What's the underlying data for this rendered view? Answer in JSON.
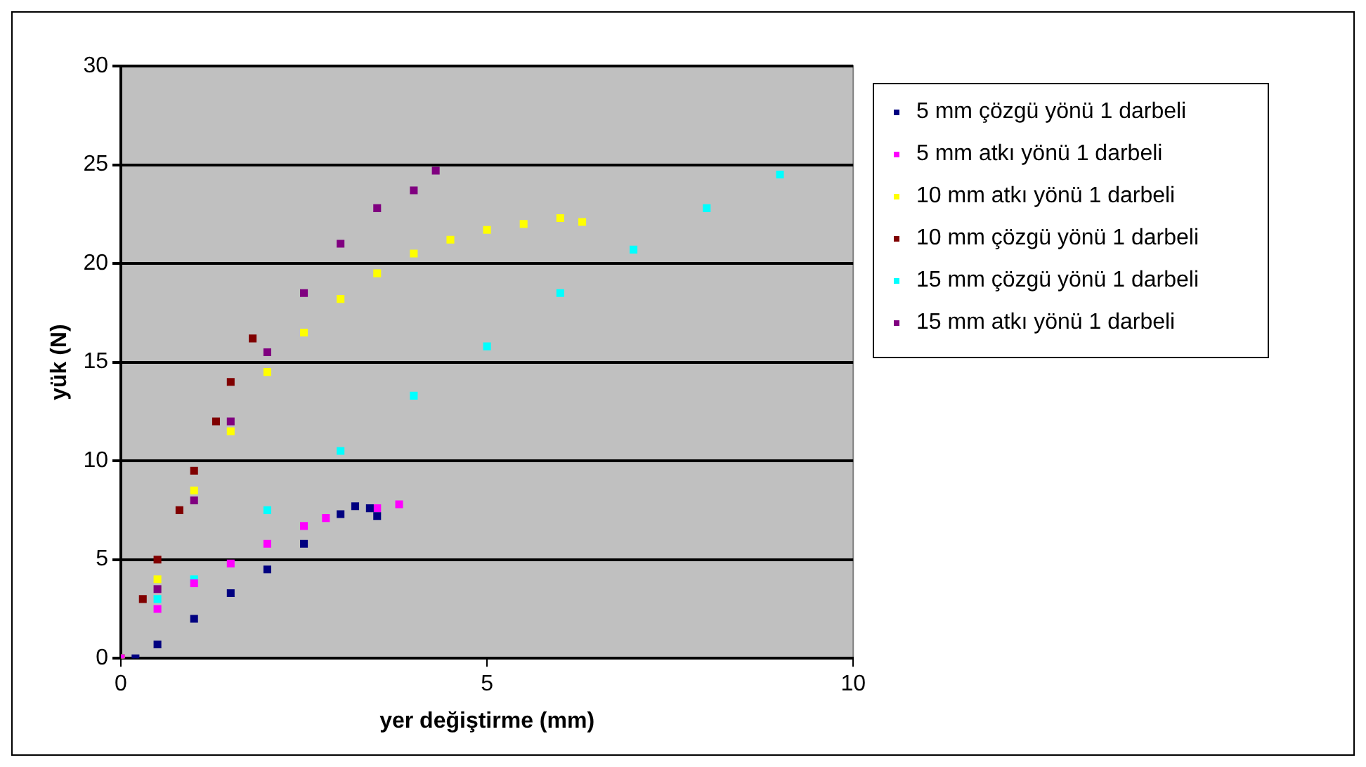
{
  "chart_data": {
    "type": "scatter",
    "xlabel": "yer değiştirme (mm)",
    "ylabel": "yük (N)",
    "xlim": [
      0,
      10
    ],
    "xticks": [
      0,
      5,
      10
    ],
    "ylim": [
      0,
      30
    ],
    "yticks": [
      0,
      5,
      10,
      15,
      20,
      25,
      30
    ],
    "grid": "y",
    "legend": "right",
    "marker": "square",
    "series": [
      {
        "name": "5 mm çözgü yönü 1 darbeli",
        "color": "#000080",
        "x": [
          0.2,
          0.5,
          1,
          1.5,
          2,
          2.5,
          3,
          3.2,
          3.4,
          3.5
        ],
        "values": [
          0,
          0.7,
          2,
          3.3,
          4.5,
          5.8,
          7.3,
          7.7,
          7.6,
          7.2
        ]
      },
      {
        "name": "5 mm atkı yönü 1 darbeli",
        "color": "#ff00ff",
        "x": [
          0,
          0.5,
          1,
          1.5,
          2,
          2.5,
          2.8,
          3.5,
          3.8
        ],
        "values": [
          0,
          2.5,
          3.8,
          4.8,
          5.8,
          6.7,
          7.1,
          7.6,
          7.8
        ]
      },
      {
        "name": "10 mm atkı yönü 1 darbeli",
        "color": "#ffff00",
        "x": [
          0,
          0.5,
          1,
          1.5,
          2,
          2.5,
          3,
          3.5,
          4,
          4.5,
          5,
          5.5,
          6,
          6.3
        ],
        "values": [
          0,
          4,
          8.5,
          11.5,
          14.5,
          16.5,
          18.2,
          19.5,
          20.5,
          21.2,
          21.7,
          22,
          22.3,
          22.1
        ]
      },
      {
        "name": "10 mm çözgü yönü 1 darbeli",
        "color": "#800000",
        "x": [
          0,
          0.3,
          0.5,
          0.8,
          1,
          1.3,
          1.5,
          1.8
        ],
        "values": [
          0,
          3,
          5,
          7.5,
          9.5,
          12,
          14,
          16.2
        ]
      },
      {
        "name": "15 mm çözgü yönü 1 darbeli",
        "color": "#00ffff",
        "x": [
          0,
          0.5,
          1,
          2,
          3,
          4,
          5,
          6,
          7,
          8,
          9
        ],
        "values": [
          0,
          3,
          4,
          7.5,
          10.5,
          13.3,
          15.8,
          18.5,
          20.7,
          22.8,
          24.5
        ]
      },
      {
        "name": "15 mm atkı yönü 1 darbeli",
        "color": "#800080",
        "x": [
          0,
          0.5,
          1,
          1.5,
          2,
          2.5,
          3,
          3.5,
          4,
          4.3
        ],
        "values": [
          0,
          3.5,
          8,
          12,
          15.5,
          18.5,
          21,
          22.8,
          23.7,
          24.7
        ]
      }
    ]
  }
}
